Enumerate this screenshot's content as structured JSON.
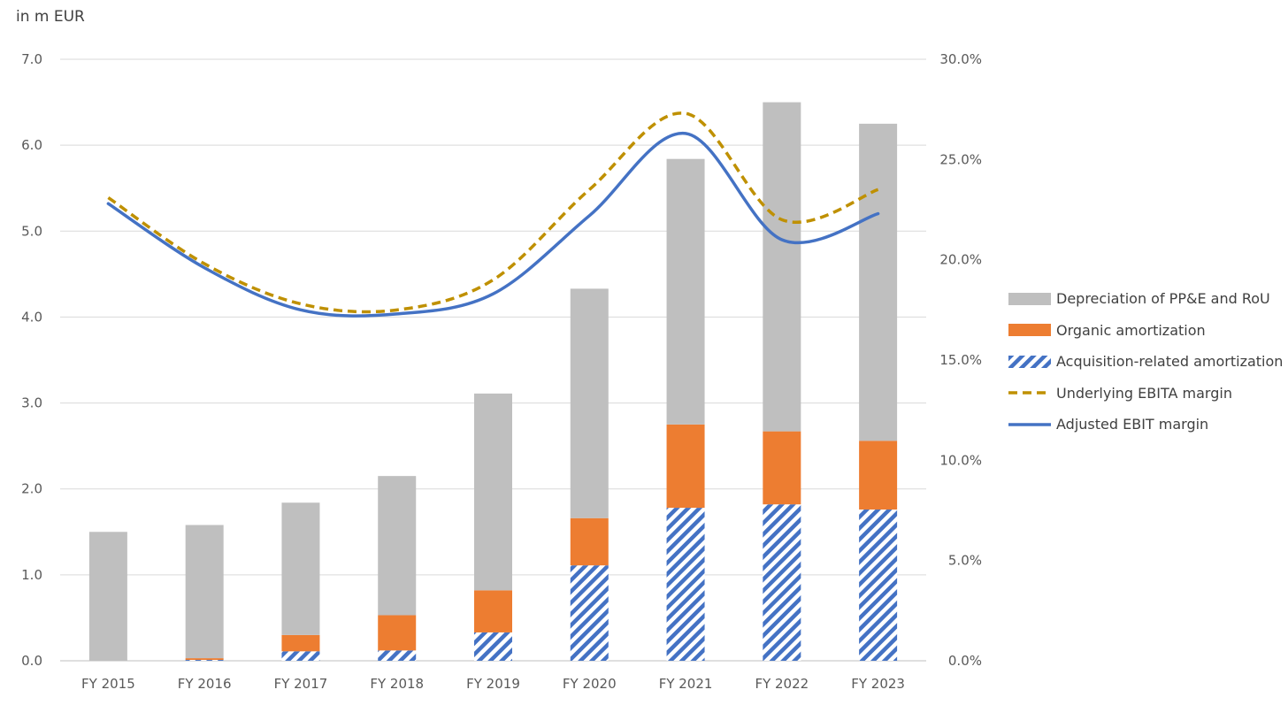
{
  "unit_label": "in m EUR",
  "chart_data": {
    "type": "bar",
    "stacked": true,
    "categories": [
      "FY 2015",
      "FY 2016",
      "FY 2017",
      "FY 2018",
      "FY 2019",
      "FY 2020",
      "FY 2021",
      "FY 2022",
      "FY 2023"
    ],
    "series": [
      {
        "name": "Acquisition-related amortization",
        "type": "bar",
        "axis": "left",
        "pattern": "diagonal-hatch",
        "color": "#4472c4",
        "values": [
          0.0,
          0.01,
          0.11,
          0.12,
          0.33,
          1.11,
          1.78,
          1.82,
          1.76
        ]
      },
      {
        "name": "Organic amortization",
        "type": "bar",
        "axis": "left",
        "color": "#ed7d31",
        "values": [
          0.0,
          0.02,
          0.19,
          0.41,
          0.49,
          0.55,
          0.97,
          0.85,
          0.8
        ]
      },
      {
        "name": "Depreciation of PP&E and RoU",
        "type": "bar",
        "axis": "left",
        "color": "#bfbfbf",
        "values": [
          1.5,
          1.55,
          1.54,
          1.62,
          2.29,
          2.67,
          3.09,
          3.83,
          3.69
        ]
      },
      {
        "name": "Underlying EBITA margin",
        "type": "line",
        "axis": "right",
        "style": "dashed",
        "color": "#bf9000",
        "values": [
          23.1,
          19.8,
          17.8,
          17.5,
          19.0,
          23.5,
          27.3,
          22.0,
          23.5
        ]
      },
      {
        "name": "Adjusted EBIT margin",
        "type": "line",
        "axis": "right",
        "style": "solid",
        "color": "#4472c4",
        "values": [
          22.8,
          19.6,
          17.5,
          17.3,
          18.3,
          22.2,
          26.3,
          21.0,
          22.3
        ]
      }
    ],
    "legend_order": [
      "Depreciation of PP&E and RoU",
      "Organic amortization",
      "Acquisition-related amortization",
      "Underlying EBITA margin",
      "Adjusted EBIT margin"
    ],
    "ylim": [
      0,
      7
    ],
    "y_ticks": [
      "0.0",
      "1.0",
      "2.0",
      "3.0",
      "4.0",
      "5.0",
      "6.0",
      "7.0"
    ],
    "y2lim": [
      0,
      30
    ],
    "y2_ticks": [
      "0.0%",
      "5.0%",
      "10.0%",
      "15.0%",
      "20.0%",
      "25.0%",
      "30.0%"
    ],
    "grid": true,
    "legend_position": "right"
  }
}
